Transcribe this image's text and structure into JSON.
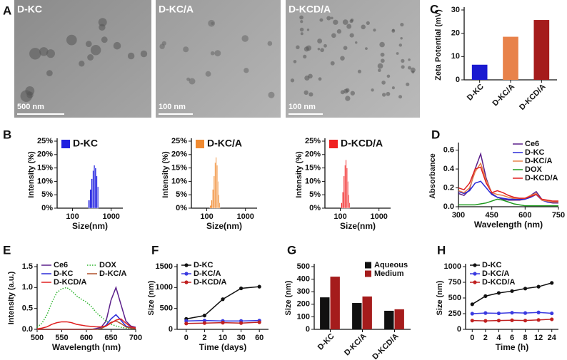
{
  "image_panel": {
    "panel": "A",
    "images": [
      {
        "label": "D-KC",
        "scale": "500 nm"
      },
      {
        "label": "D-KC/A",
        "scale": "100 nm"
      },
      {
        "label": "D-KCD/A",
        "scale": "100 nm"
      }
    ]
  },
  "chart_data": [
    {
      "type": "bar",
      "panel": "C",
      "ylabel": "Zeta Potential (mV)",
      "categories": [
        "D-KC",
        "D-KC/A",
        "D-KCD/A"
      ],
      "values": [
        6.5,
        18.5,
        25.7
      ],
      "colors": [
        "#1a1ad0",
        "#e8824a",
        "#a51c1c"
      ],
      "ylim": [
        0,
        30
      ],
      "yticks": [
        0,
        10,
        20,
        30
      ]
    },
    {
      "type": "histogram",
      "panel": "B",
      "ylabel": "Intensity (%)",
      "xlabel": "Size(nm)",
      "xlog": true,
      "xlim": [
        40,
        2000
      ],
      "xticks": [
        100,
        1000
      ],
      "ylim": [
        0,
        25
      ],
      "yticks": [
        {
          "value": 0,
          "label": "0%"
        },
        {
          "value": 5,
          "label": "5%"
        },
        {
          "value": 10,
          "label": "10%"
        },
        {
          "value": 15,
          "label": "15%"
        },
        {
          "value": 20,
          "label": "20%"
        },
        {
          "value": 25,
          "label": "25%"
        }
      ],
      "bins": [
        255,
        280,
        305,
        330,
        355,
        380,
        410,
        440,
        470
      ],
      "series": [
        {
          "name": "D-KC",
          "color": "#1f1fe0",
          "values": [
            3,
            7,
            11,
            14,
            16,
            15,
            12,
            8
          ]
        }
      ],
      "legend": "upper left"
    },
    {
      "type": "histogram",
      "ylabel": "Intensity (%)",
      "xlabel": "Size(nm)",
      "xlog": true,
      "xlim": [
        40,
        2000
      ],
      "xticks": [
        100,
        1000
      ],
      "ylim": [
        0,
        25
      ],
      "yticks": [
        {
          "value": 0,
          "label": "0%"
        },
        {
          "value": 5,
          "label": "5%"
        },
        {
          "value": 10,
          "label": "10%"
        },
        {
          "value": 15,
          "label": "15%"
        },
        {
          "value": 20,
          "label": "20%"
        },
        {
          "value": 25,
          "label": "25%"
        }
      ],
      "bins": [
        120,
        130,
        140,
        150,
        160,
        170,
        180,
        190,
        200,
        210,
        220
      ],
      "series": [
        {
          "name": "D-KC/A",
          "color": "#f08a30",
          "values": [
            1,
            3,
            7,
            12,
            17,
            19,
            16,
            10,
            5,
            2
          ]
        }
      ],
      "legend": "upper left"
    },
    {
      "type": "histogram",
      "ylabel": "Intensity (%)",
      "xlabel": "Size(nm)",
      "xlog": true,
      "xlim": [
        40,
        2000
      ],
      "xticks": [
        100,
        1000
      ],
      "ylim": [
        0,
        25
      ],
      "yticks": [
        {
          "value": 0,
          "label": "0%"
        },
        {
          "value": 5,
          "label": "5%"
        },
        {
          "value": 10,
          "label": "10%"
        },
        {
          "value": 15,
          "label": "15%"
        },
        {
          "value": 20,
          "label": "20%"
        },
        {
          "value": 25,
          "label": "25%"
        }
      ],
      "bins": [
        105,
        113,
        121,
        129,
        137,
        145,
        153,
        161,
        169,
        177
      ],
      "series": [
        {
          "name": "D-KCD/A",
          "color": "#f02020",
          "values": [
            2,
            6,
            12,
            16,
            18,
            15,
            10,
            5,
            2
          ]
        }
      ],
      "legend": "upper left"
    },
    {
      "type": "line",
      "panel": "D",
      "ylabel": "Absorbance",
      "xlabel": "Wavelength (nm)",
      "x": [
        300,
        325,
        350,
        375,
        400,
        425,
        450,
        475,
        500,
        525,
        550,
        575,
        600,
        625,
        650,
        675,
        700,
        725,
        750
      ],
      "xlim": [
        300,
        750
      ],
      "xticks": [
        300,
        450,
        600,
        750
      ],
      "ylim": [
        0,
        0.65
      ],
      "yticks": [
        {
          "value": 0,
          "label": "0.0"
        },
        0.2,
        0.4,
        0.6
      ],
      "legend": "upper right",
      "legend_columns": 1,
      "series": [
        {
          "name": "Ce6",
          "color": "#5b1f8a",
          "values": [
            0.14,
            0.12,
            0.18,
            0.4,
            0.56,
            0.3,
            0.14,
            0.1,
            0.08,
            0.07,
            0.07,
            0.07,
            0.08,
            0.12,
            0.16,
            0.08,
            0.05,
            0.04,
            0.04
          ]
        },
        {
          "name": "D-KC",
          "color": "#2b2bd8",
          "values": [
            0.16,
            0.14,
            0.17,
            0.25,
            0.27,
            0.2,
            0.13,
            0.1,
            0.09,
            0.08,
            0.08,
            0.08,
            0.08,
            0.1,
            0.13,
            0.07,
            0.05,
            0.05,
            0.05
          ]
        },
        {
          "name": "D-KC/A",
          "color": "#e8824a",
          "values": [
            0.17,
            0.15,
            0.2,
            0.37,
            0.46,
            0.28,
            0.15,
            0.13,
            0.12,
            0.1,
            0.09,
            0.09,
            0.09,
            0.12,
            0.14,
            0.07,
            0.06,
            0.05,
            0.05
          ]
        },
        {
          "name": "DOX",
          "color": "#1e9a1e",
          "values": [
            0.02,
            0.02,
            0.02,
            0.02,
            0.03,
            0.04,
            0.06,
            0.08,
            0.07,
            0.05,
            0.03,
            0.02,
            0.01,
            0.01,
            0.01,
            0.01,
            0.01,
            0.01,
            0.01
          ]
        },
        {
          "name": "D-KCD/A",
          "color": "#e02020",
          "values": [
            0.2,
            0.18,
            0.25,
            0.4,
            0.42,
            0.25,
            0.15,
            0.17,
            0.15,
            0.12,
            0.1,
            0.09,
            0.09,
            0.11,
            0.13,
            0.08,
            0.07,
            0.06,
            0.06
          ]
        }
      ]
    },
    {
      "type": "line",
      "panel": "E",
      "ylabel": "Intensity (a.u.)",
      "xlabel": "Wavelength (nm)",
      "x": [
        500,
        510,
        520,
        530,
        540,
        550,
        560,
        570,
        580,
        590,
        600,
        610,
        620,
        630,
        640,
        650,
        660,
        670,
        680,
        690,
        700
      ],
      "xlim": [
        500,
        700
      ],
      "xticks": [
        500,
        550,
        600,
        650,
        700
      ],
      "ylim": [
        0,
        1.5
      ],
      "yticks": [
        {
          "value": 0,
          "label": "0.0"
        },
        0.5,
        {
          "value": 1,
          "label": "1.0"
        },
        1.5
      ],
      "legend": "upper left",
      "legend_columns": 2,
      "series": [
        {
          "name": "Ce6",
          "color": "#5b1f8a",
          "values": [
            0,
            0,
            0,
            0,
            0,
            0,
            0,
            0,
            0,
            0,
            0,
            0,
            0.02,
            0.05,
            0.2,
            0.7,
            1.0,
            0.6,
            0.2,
            0.08,
            0.05
          ]
        },
        {
          "name": "DOX",
          "color": "#2fb52f",
          "linestyle": "dotted",
          "values": [
            0.05,
            0.15,
            0.35,
            0.65,
            0.88,
            0.97,
            1.0,
            0.92,
            0.8,
            0.72,
            0.65,
            0.55,
            0.4,
            0.3,
            0.2,
            0.12,
            0.08,
            0.05,
            0.03,
            0.02,
            0.02
          ]
        },
        {
          "name": "D-KC",
          "color": "#2b2bd8",
          "values": [
            0,
            0,
            0,
            0,
            0,
            0,
            0,
            0,
            0,
            0,
            0,
            0,
            0.01,
            0.02,
            0.1,
            0.25,
            0.35,
            0.22,
            0.08,
            0.04,
            0.02
          ]
        },
        {
          "name": "D-KC/A",
          "color": "#b0502a",
          "values": [
            0,
            0,
            0,
            0,
            0,
            0,
            0,
            0,
            0,
            0,
            0,
            0,
            0,
            0.02,
            0.08,
            0.17,
            0.2,
            0.14,
            0.06,
            0.03,
            0.02
          ]
        },
        {
          "name": "D-KCD/A",
          "color": "#e02020",
          "values": [
            0.01,
            0.03,
            0.06,
            0.12,
            0.16,
            0.18,
            0.18,
            0.16,
            0.12,
            0.1,
            0.08,
            0.07,
            0.06,
            0.06,
            0.08,
            0.15,
            0.22,
            0.25,
            0.15,
            0.06,
            0.03
          ]
        }
      ]
    },
    {
      "type": "line",
      "panel": "F",
      "ylabel": "Size (nm)",
      "xlabel": "Time (days)",
      "marker": true,
      "categories": [
        "0",
        "2",
        "10",
        "30",
        "60"
      ],
      "ylim": [
        0,
        1500
      ],
      "yticks": [
        0,
        500,
        1000,
        1500
      ],
      "legend": "upper left",
      "legend_columns": 1,
      "series": [
        {
          "name": "D-KC",
          "color": "#111111",
          "values": [
            250,
            330,
            720,
            980,
            1020
          ]
        },
        {
          "name": "D-KC/A",
          "color": "#3a3ae0",
          "values": [
            200,
            210,
            200,
            200,
            210
          ]
        },
        {
          "name": "D-KCD/A",
          "color": "#c02020",
          "values": [
            140,
            150,
            160,
            150,
            170
          ]
        }
      ]
    },
    {
      "type": "bar",
      "panel": "G",
      "ylabel": "Size (nm)",
      "categories": [
        "D-KC",
        "D-KC/A",
        "D-KCD/A"
      ],
      "ylim": [
        0,
        500
      ],
      "yticks": [
        0,
        100,
        200,
        300,
        400,
        500
      ],
      "legend": "upper right",
      "legend_columns": 1,
      "series": [
        {
          "name": "Aqueous",
          "color": "#111111",
          "values": [
            255,
            210,
            148
          ]
        },
        {
          "name": "Medium",
          "color": "#a51c1c",
          "values": [
            420,
            262,
            160
          ]
        }
      ]
    },
    {
      "type": "line",
      "panel": "H",
      "ylabel": "Size (nm)",
      "xlabel": "Time (h)",
      "marker": true,
      "categories": [
        "0",
        "2",
        "4",
        "6",
        "8",
        "12",
        "24"
      ],
      "ylim": [
        0,
        1000
      ],
      "yticks": [
        0,
        250,
        500,
        750,
        1000
      ],
      "legend": "upper left",
      "legend_columns": 1,
      "series": [
        {
          "name": "D-KC",
          "color": "#111111",
          "values": [
            400,
            530,
            580,
            610,
            650,
            680,
            740
          ]
        },
        {
          "name": "D-KC/A",
          "color": "#3a3ae0",
          "values": [
            250,
            260,
            255,
            265,
            260,
            270,
            255
          ]
        },
        {
          "name": "D-KCD/A",
          "color": "#c02020",
          "values": [
            140,
            135,
            140,
            145,
            140,
            150,
            160
          ]
        }
      ]
    }
  ]
}
